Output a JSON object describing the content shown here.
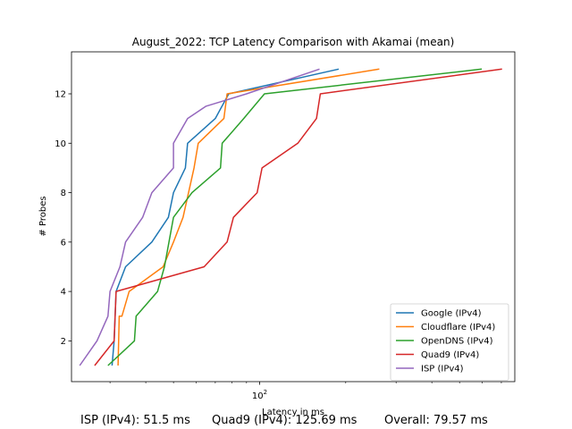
{
  "chart_data": {
    "type": "line",
    "title": "August_2022: TCP Latency Comparison with Akamai (mean)",
    "xlabel": "Latency in ms",
    "ylabel": "# Probes",
    "xscale": "log",
    "xlim": [
      22,
      780
    ],
    "ylim": [
      0.35,
      13.7
    ],
    "x_ticks": [
      {
        "value": 100,
        "label": "10^2"
      }
    ],
    "x_minor_ticks": [
      30,
      40,
      50,
      60,
      70,
      80,
      90,
      200,
      300,
      400,
      500,
      600,
      700
    ],
    "y_ticks": [
      2,
      4,
      6,
      8,
      10,
      12
    ],
    "grid": false,
    "legend_position": "lower-right",
    "series": [
      {
        "name": "Google (IPv4)",
        "color": "#1f77b4",
        "x": [
          30.5,
          31,
          31.5,
          34,
          42,
          48,
          50,
          55,
          56,
          70,
          78,
          189
        ],
        "y": [
          1,
          2,
          4,
          5,
          6,
          7,
          8,
          9,
          10,
          11,
          12,
          13
        ]
      },
      {
        "name": "Cloudflare (IPv4)",
        "color": "#ff7f0e",
        "x": [
          32,
          32.3,
          33,
          35,
          46,
          50,
          54,
          59,
          61,
          75,
          77,
          262
        ],
        "y": [
          1,
          3,
          3,
          4,
          5,
          6,
          7,
          9,
          10,
          11,
          12,
          13
        ]
      },
      {
        "name": "OpenDNS (IPv4)",
        "color": "#2ca02c",
        "x": [
          29.5,
          36.5,
          37,
          44,
          46.5,
          50,
          58,
          73,
          74,
          88,
          104,
          598
        ],
        "y": [
          1,
          2,
          3,
          4,
          5,
          7,
          8,
          9,
          10,
          11,
          12,
          13
        ]
      },
      {
        "name": "Quad9 (IPv4)",
        "color": "#d62728",
        "x": [
          26.5,
          31,
          31.5,
          64,
          77,
          81,
          98,
          102,
          136,
          158,
          163,
          704
        ],
        "y": [
          1,
          2,
          4,
          5,
          6,
          7,
          8,
          9,
          10,
          11,
          12,
          13
        ]
      },
      {
        "name": "ISP (IPv4)",
        "color": "#9467bd",
        "x": [
          23.5,
          27,
          29.5,
          30,
          32.5,
          34,
          39,
          42,
          50,
          50,
          56,
          65,
          90,
          162
        ],
        "y": [
          1,
          2,
          3,
          4,
          5,
          6,
          7,
          8,
          9,
          10,
          11,
          11.5,
          12,
          13
        ]
      }
    ]
  },
  "footer": {
    "isp": "ISP (IPv4): 51.5 ms",
    "quad9": "Quad9 (IPv4): 125.69 ms",
    "overall": "Overall: 79.57 ms"
  }
}
